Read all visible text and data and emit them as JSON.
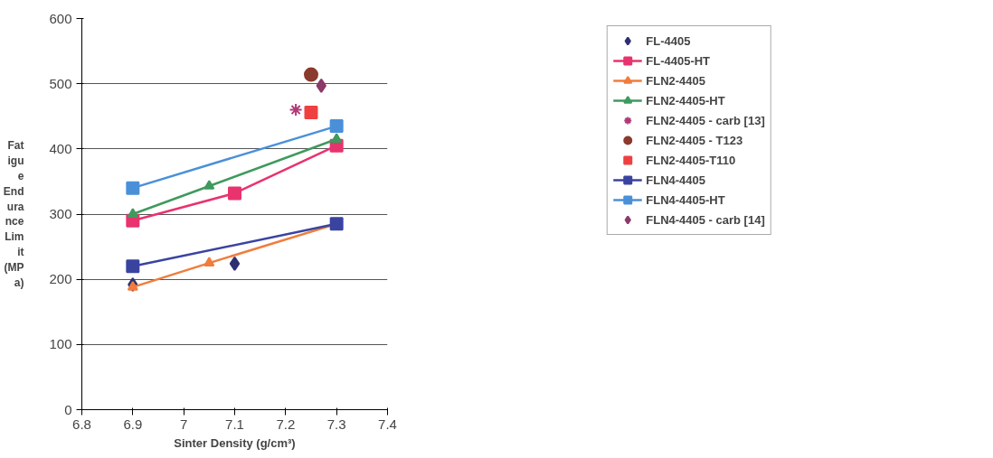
{
  "chart_data": {
    "type": "line",
    "xlabel": "Sinter Density (g/cm³)",
    "ylabel": "Fatigue Endurance Limit (MPa)",
    "xlim": [
      6.8,
      7.4
    ],
    "xticks": [
      6.8,
      6.9,
      7,
      7.1,
      7.2,
      7.3,
      7.4
    ],
    "ylim": [
      0,
      600
    ],
    "yticks": [
      0,
      100,
      200,
      300,
      400,
      500,
      600
    ],
    "grid": "y",
    "legend": "right",
    "series": [
      {
        "name": "FL-4405",
        "type": "scatter",
        "marker": "diamond",
        "color": "#2e3070",
        "x": [
          6.9,
          7.1
        ],
        "values": [
          192,
          224
        ]
      },
      {
        "name": "FL-4405-HT",
        "marker": "square",
        "color": "#e8336e",
        "x": [
          6.9,
          7.1,
          7.3
        ],
        "values": [
          290,
          332,
          405
        ]
      },
      {
        "name": "FLN2-4405",
        "marker": "triangle",
        "color": "#f07d3c",
        "x": [
          6.9,
          7.05,
          7.3
        ],
        "values": [
          188,
          225,
          285
        ]
      },
      {
        "name": "FLN2-4405-HT",
        "marker": "triangle",
        "color": "#3f9a5e",
        "x": [
          6.9,
          7.05,
          7.3
        ],
        "values": [
          300,
          343,
          415
        ]
      },
      {
        "name": "FLN2-4405 - carb [13]",
        "type": "scatter",
        "marker": "cross",
        "color": "#b03a78",
        "x": [
          7.22
        ],
        "values": [
          460
        ]
      },
      {
        "name": "FLN2-4405 - T123",
        "type": "scatter",
        "marker": "circle",
        "color": "#8b3a2e",
        "x": [
          7.25
        ],
        "values": [
          514
        ]
      },
      {
        "name": "FLN2-4405-T110",
        "type": "scatter",
        "marker": "square",
        "color": "#ee4040",
        "x": [
          7.25
        ],
        "values": [
          456
        ]
      },
      {
        "name": "FLN4-4405",
        "marker": "square",
        "color": "#3a44a0",
        "x": [
          6.9,
          7.3
        ],
        "values": [
          220,
          285
        ]
      },
      {
        "name": "FLN4-4405-HT",
        "marker": "square",
        "color": "#4a90d9",
        "x": [
          6.9,
          7.3
        ],
        "values": [
          340,
          435
        ]
      },
      {
        "name": "FLN4-4405 - carb [14]",
        "type": "scatter",
        "marker": "diamond",
        "color": "#8b3a6a",
        "x": [
          7.27
        ],
        "values": [
          497
        ]
      }
    ]
  }
}
